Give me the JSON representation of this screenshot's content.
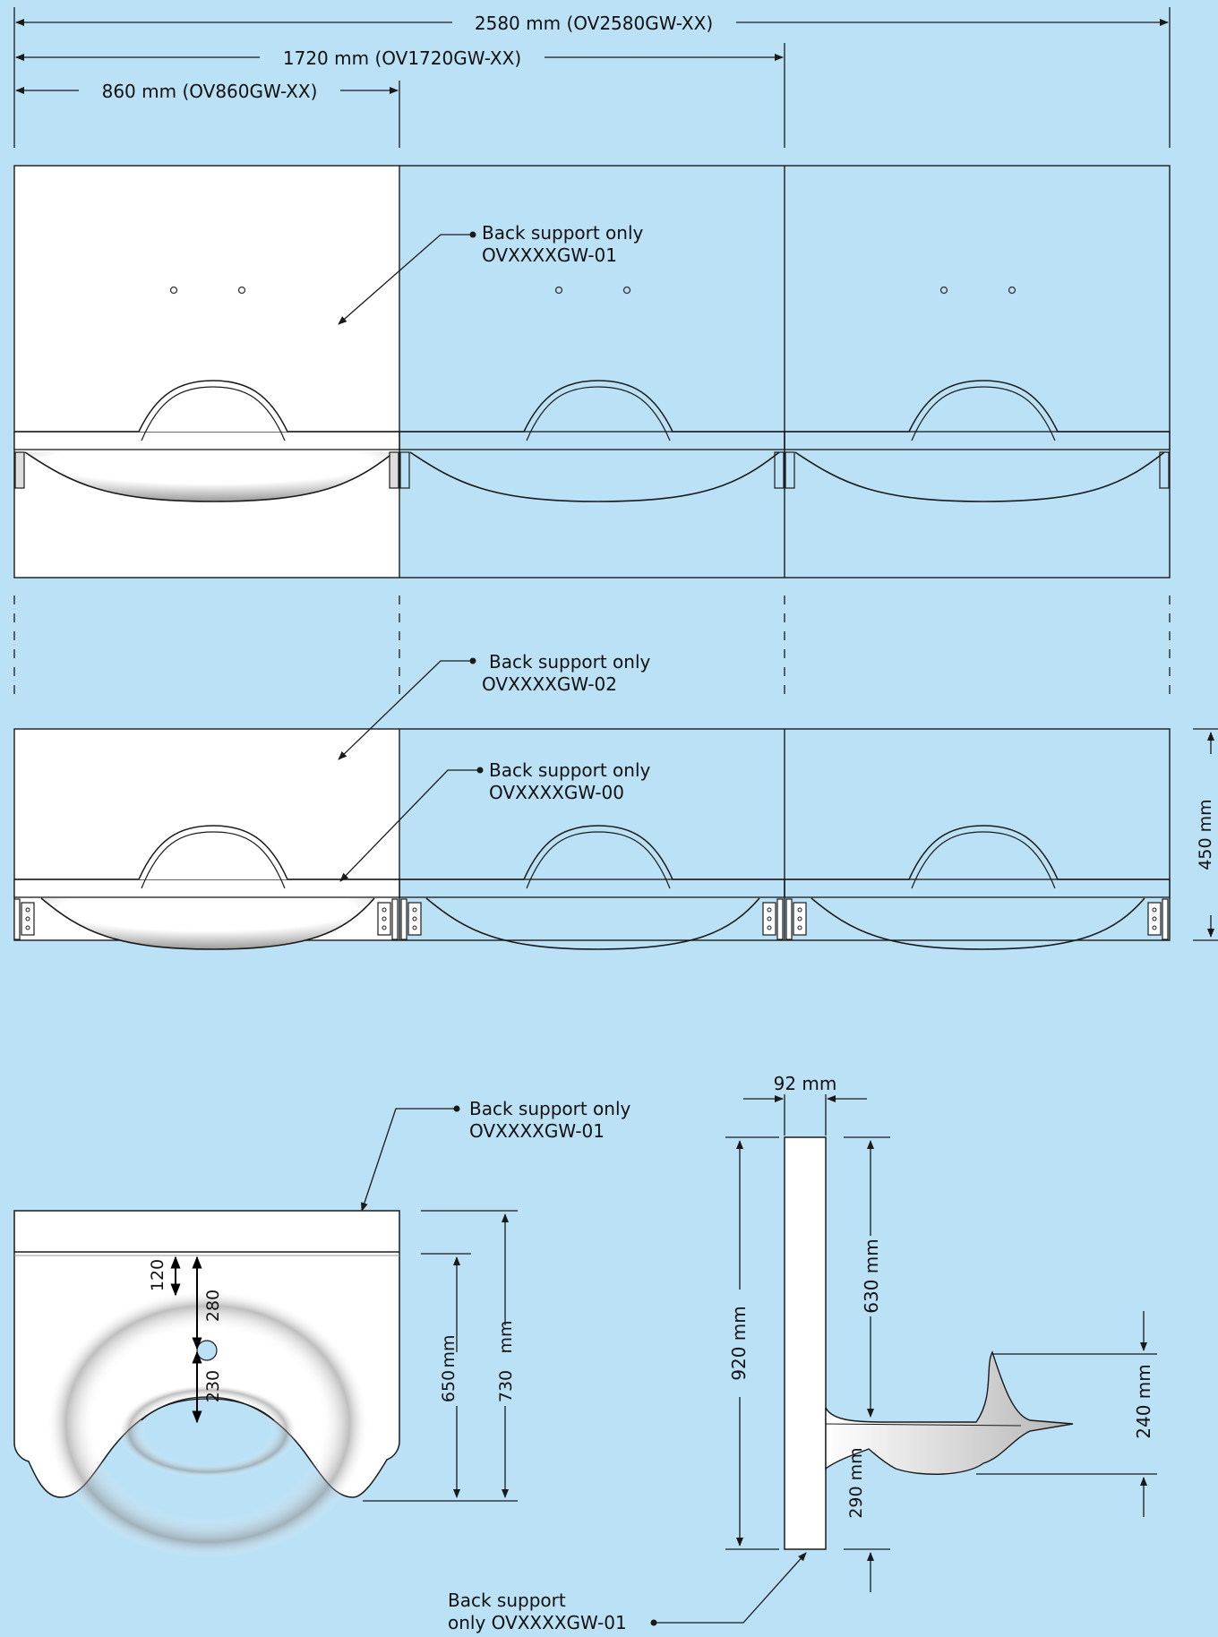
{
  "dimensions": {
    "overall_2580": "2580 mm (OV2580GW-XX)",
    "overall_1720": "1720 mm (OV1720GW-XX)",
    "overall_860": "860 mm (OV860GW-XX)",
    "height_450": "450 mm",
    "depth_92": "92 mm",
    "height_920": "920 mm",
    "height_630": "630 mm",
    "height_290": "290 mm",
    "height_240": "240 mm",
    "side_650_value": "650",
    "side_650_unit": "mm",
    "side_730_value": "730",
    "side_730_unit": "mm",
    "dim_120": "120",
    "dim_280": "280",
    "dim_230": "230"
  },
  "callouts": {
    "top_01_line1": "Back support only",
    "top_01_line2": "OVXXXXGW-01",
    "mid_02_line1": "Back support only",
    "mid_02_line2": "OVXXXXGW-02",
    "mid_00_line1": "Back support only",
    "mid_00_line2": "OVXXXXGW-00",
    "plan_01_line1": "Back support only",
    "plan_01_line2": "OVXXXXGW-01",
    "side_01_line1": "Back support",
    "side_01_line2": "only OVXXXXGW-01"
  },
  "colors": {
    "background": "#bbe1f6",
    "line": "#1a1a1a",
    "panel_white": "#ffffff"
  }
}
